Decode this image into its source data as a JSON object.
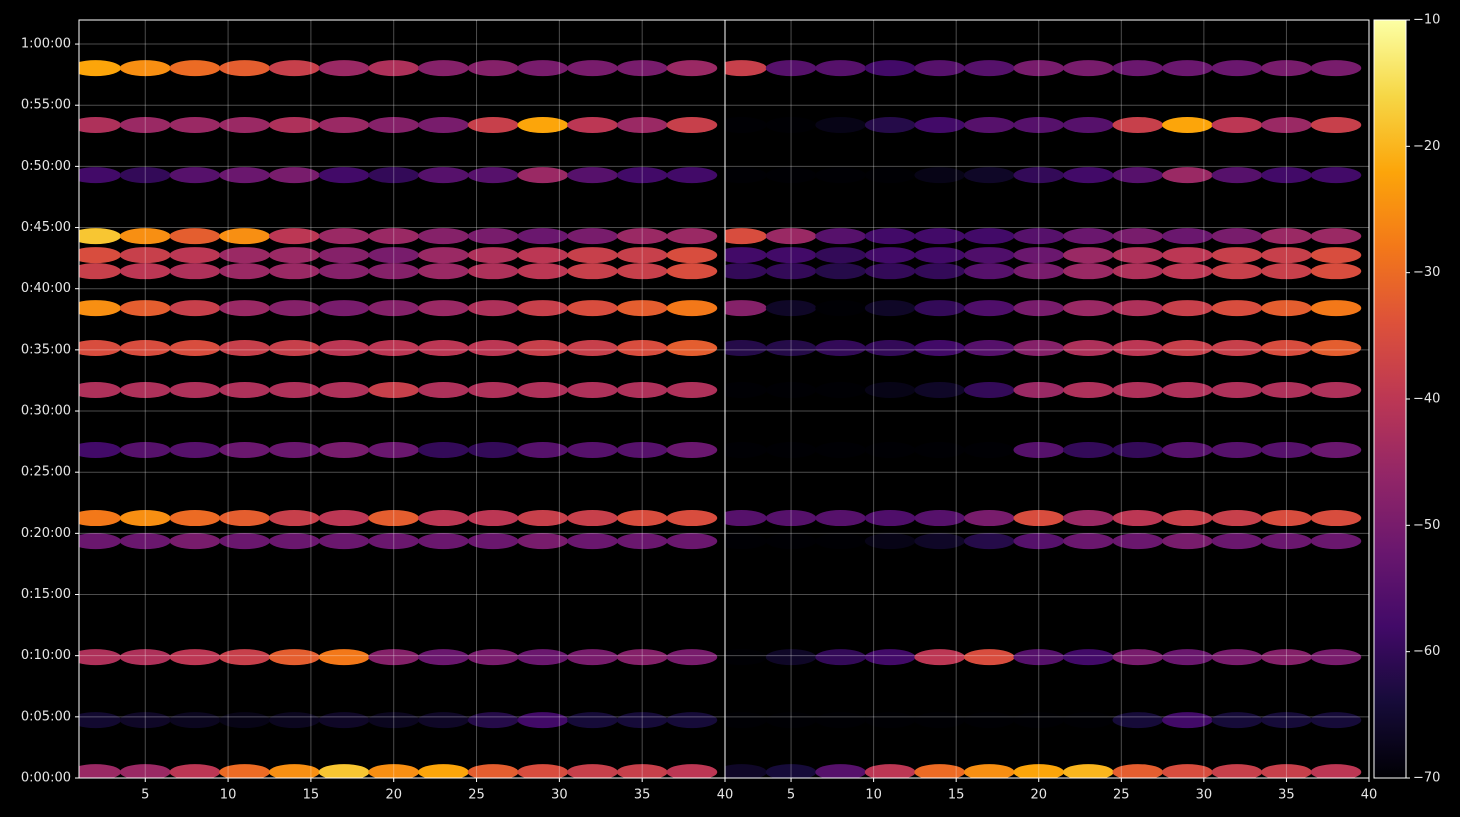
{
  "chart_data": {
    "type": "heatmap",
    "colormap": "inferno",
    "grid": true,
    "x": [
      2,
      5,
      8,
      11,
      14,
      17,
      20,
      23,
      26,
      29,
      32,
      35,
      38
    ],
    "y": [
      3482,
      3203,
      2957,
      2658,
      2565,
      2486,
      2305,
      2109,
      1903,
      1609,
      1275,
      1162,
      593,
      284,
      29
    ],
    "xlim": [
      1,
      40
    ],
    "ylim": [
      0,
      3718
    ],
    "yticks": [
      {
        "value": 0,
        "label": "0:00:00"
      },
      {
        "value": 300,
        "label": "0:05:00"
      },
      {
        "value": 600,
        "label": "0:10:00"
      },
      {
        "value": 900,
        "label": "0:15:00"
      },
      {
        "value": 1200,
        "label": "0:20:00"
      },
      {
        "value": 1500,
        "label": "0:25:00"
      },
      {
        "value": 1800,
        "label": "0:30:00"
      },
      {
        "value": 2100,
        "label": "0:35:00"
      },
      {
        "value": 2400,
        "label": "0:40:00"
      },
      {
        "value": 2700,
        "label": "0:45:00"
      },
      {
        "value": 3000,
        "label": "0:50:00"
      },
      {
        "value": 3300,
        "label": "0:55:00"
      },
      {
        "value": 3600,
        "label": "1:00:00"
      }
    ],
    "panels": [
      {
        "xticks": [
          5,
          10,
          15,
          20,
          25,
          30,
          35,
          40
        ],
        "values": [
          [
            -22,
            -25,
            -30,
            -32,
            -38,
            -45,
            -42,
            -48,
            -48,
            -50,
            -50,
            -50,
            -45
          ],
          [
            -42,
            -45,
            -45,
            -45,
            -42,
            -45,
            -48,
            -50,
            -38,
            -22,
            -40,
            -45,
            -38
          ],
          [
            -58,
            -60,
            -55,
            -52,
            -50,
            -58,
            -60,
            -55,
            -55,
            -45,
            -55,
            -58,
            -58
          ],
          [
            -18,
            -25,
            -32,
            -25,
            -40,
            -45,
            -45,
            -48,
            -50,
            -52,
            -50,
            -45,
            -45
          ],
          [
            -35,
            -38,
            -40,
            -45,
            -45,
            -48,
            -50,
            -45,
            -42,
            -40,
            -38,
            -38,
            -35
          ],
          [
            -38,
            -40,
            -42,
            -45,
            -45,
            -48,
            -48,
            -45,
            -42,
            -40,
            -38,
            -38,
            -35
          ],
          [
            -25,
            -32,
            -38,
            -45,
            -48,
            -50,
            -48,
            -45,
            -42,
            -38,
            -35,
            -32,
            -28
          ],
          [
            -35,
            -35,
            -35,
            -38,
            -38,
            -40,
            -40,
            -40,
            -40,
            -38,
            -38,
            -35,
            -32
          ],
          [
            -42,
            -42,
            -42,
            -42,
            -42,
            -42,
            -38,
            -42,
            -42,
            -42,
            -42,
            -42,
            -42
          ],
          [
            -58,
            -55,
            -55,
            -52,
            -52,
            -50,
            -52,
            -60,
            -60,
            -55,
            -55,
            -55,
            -52
          ],
          [
            -28,
            -25,
            -30,
            -32,
            -38,
            -40,
            -32,
            -40,
            -40,
            -38,
            -38,
            -35,
            -35
          ],
          [
            -52,
            -52,
            -50,
            -52,
            -52,
            -52,
            -52,
            -52,
            -52,
            -50,
            -52,
            -52,
            -52
          ],
          [
            -42,
            -42,
            -40,
            -38,
            -32,
            -28,
            -48,
            -52,
            -50,
            -52,
            -50,
            -48,
            -50
          ],
          [
            -65,
            -66,
            -67,
            -68,
            -67,
            -66,
            -67,
            -66,
            -62,
            -58,
            -64,
            -64,
            -64
          ],
          [
            -45,
            -45,
            -40,
            -30,
            -25,
            -18,
            -25,
            -22,
            -32,
            -35,
            -38,
            -38,
            -40
          ]
        ]
      },
      {
        "xticks": [
          5,
          10,
          15,
          20,
          25,
          30,
          35,
          40
        ],
        "values": [
          [
            -38,
            -55,
            -55,
            -58,
            -55,
            -55,
            -50,
            -50,
            -52,
            -52,
            -52,
            -50,
            -50
          ],
          [
            -70,
            -70,
            -68,
            -62,
            -58,
            -55,
            -55,
            -55,
            -38,
            -22,
            -40,
            -45,
            -38
          ],
          [
            -70,
            -70,
            -70,
            -70,
            -68,
            -66,
            -60,
            -58,
            -55,
            -45,
            -55,
            -58,
            -58
          ],
          [
            -35,
            -45,
            -55,
            -58,
            -58,
            -58,
            -55,
            -52,
            -50,
            -52,
            -50,
            -45,
            -45
          ],
          [
            -58,
            -58,
            -60,
            -58,
            -58,
            -56,
            -52,
            -45,
            -42,
            -40,
            -38,
            -38,
            -35
          ],
          [
            -60,
            -60,
            -62,
            -60,
            -60,
            -55,
            -50,
            -45,
            -42,
            -40,
            -38,
            -38,
            -35
          ],
          [
            -48,
            -66,
            -70,
            -66,
            -60,
            -56,
            -50,
            -45,
            -42,
            -38,
            -35,
            -32,
            -28
          ],
          [
            -62,
            -62,
            -60,
            -60,
            -58,
            -55,
            -48,
            -42,
            -40,
            -38,
            -38,
            -35,
            -32
          ],
          [
            -70,
            -70,
            -70,
            -68,
            -66,
            -60,
            -45,
            -42,
            -42,
            -42,
            -42,
            -42,
            -42
          ],
          [
            -70,
            -70,
            -70,
            -70,
            -70,
            -70,
            -55,
            -60,
            -60,
            -55,
            -55,
            -55,
            -52
          ],
          [
            -55,
            -55,
            -55,
            -56,
            -55,
            -50,
            -35,
            -45,
            -40,
            -38,
            -38,
            -35,
            -35
          ],
          [
            -70,
            -70,
            -70,
            -68,
            -66,
            -62,
            -55,
            -52,
            -52,
            -50,
            -52,
            -52,
            -52
          ],
          [
            -70,
            -66,
            -60,
            -58,
            -40,
            -35,
            -55,
            -58,
            -50,
            -52,
            -50,
            -48,
            -50
          ],
          [
            -70,
            -70,
            -70,
            -70,
            -70,
            -70,
            -70,
            -70,
            -64,
            -58,
            -64,
            -64,
            -64
          ],
          [
            -66,
            -64,
            -55,
            -40,
            -30,
            -25,
            -22,
            -20,
            -32,
            -35,
            -38,
            -38,
            -40
          ]
        ]
      }
    ],
    "colorbar": {
      "clim": [
        -70,
        -10
      ],
      "ticks": [
        {
          "value": -10,
          "label": "−10"
        },
        {
          "value": -20,
          "label": "−20"
        },
        {
          "value": -30,
          "label": "−30"
        },
        {
          "value": -40,
          "label": "−40"
        },
        {
          "value": -50,
          "label": "−50"
        },
        {
          "value": -60,
          "label": "−60"
        },
        {
          "value": -70,
          "label": "−70"
        }
      ]
    }
  }
}
